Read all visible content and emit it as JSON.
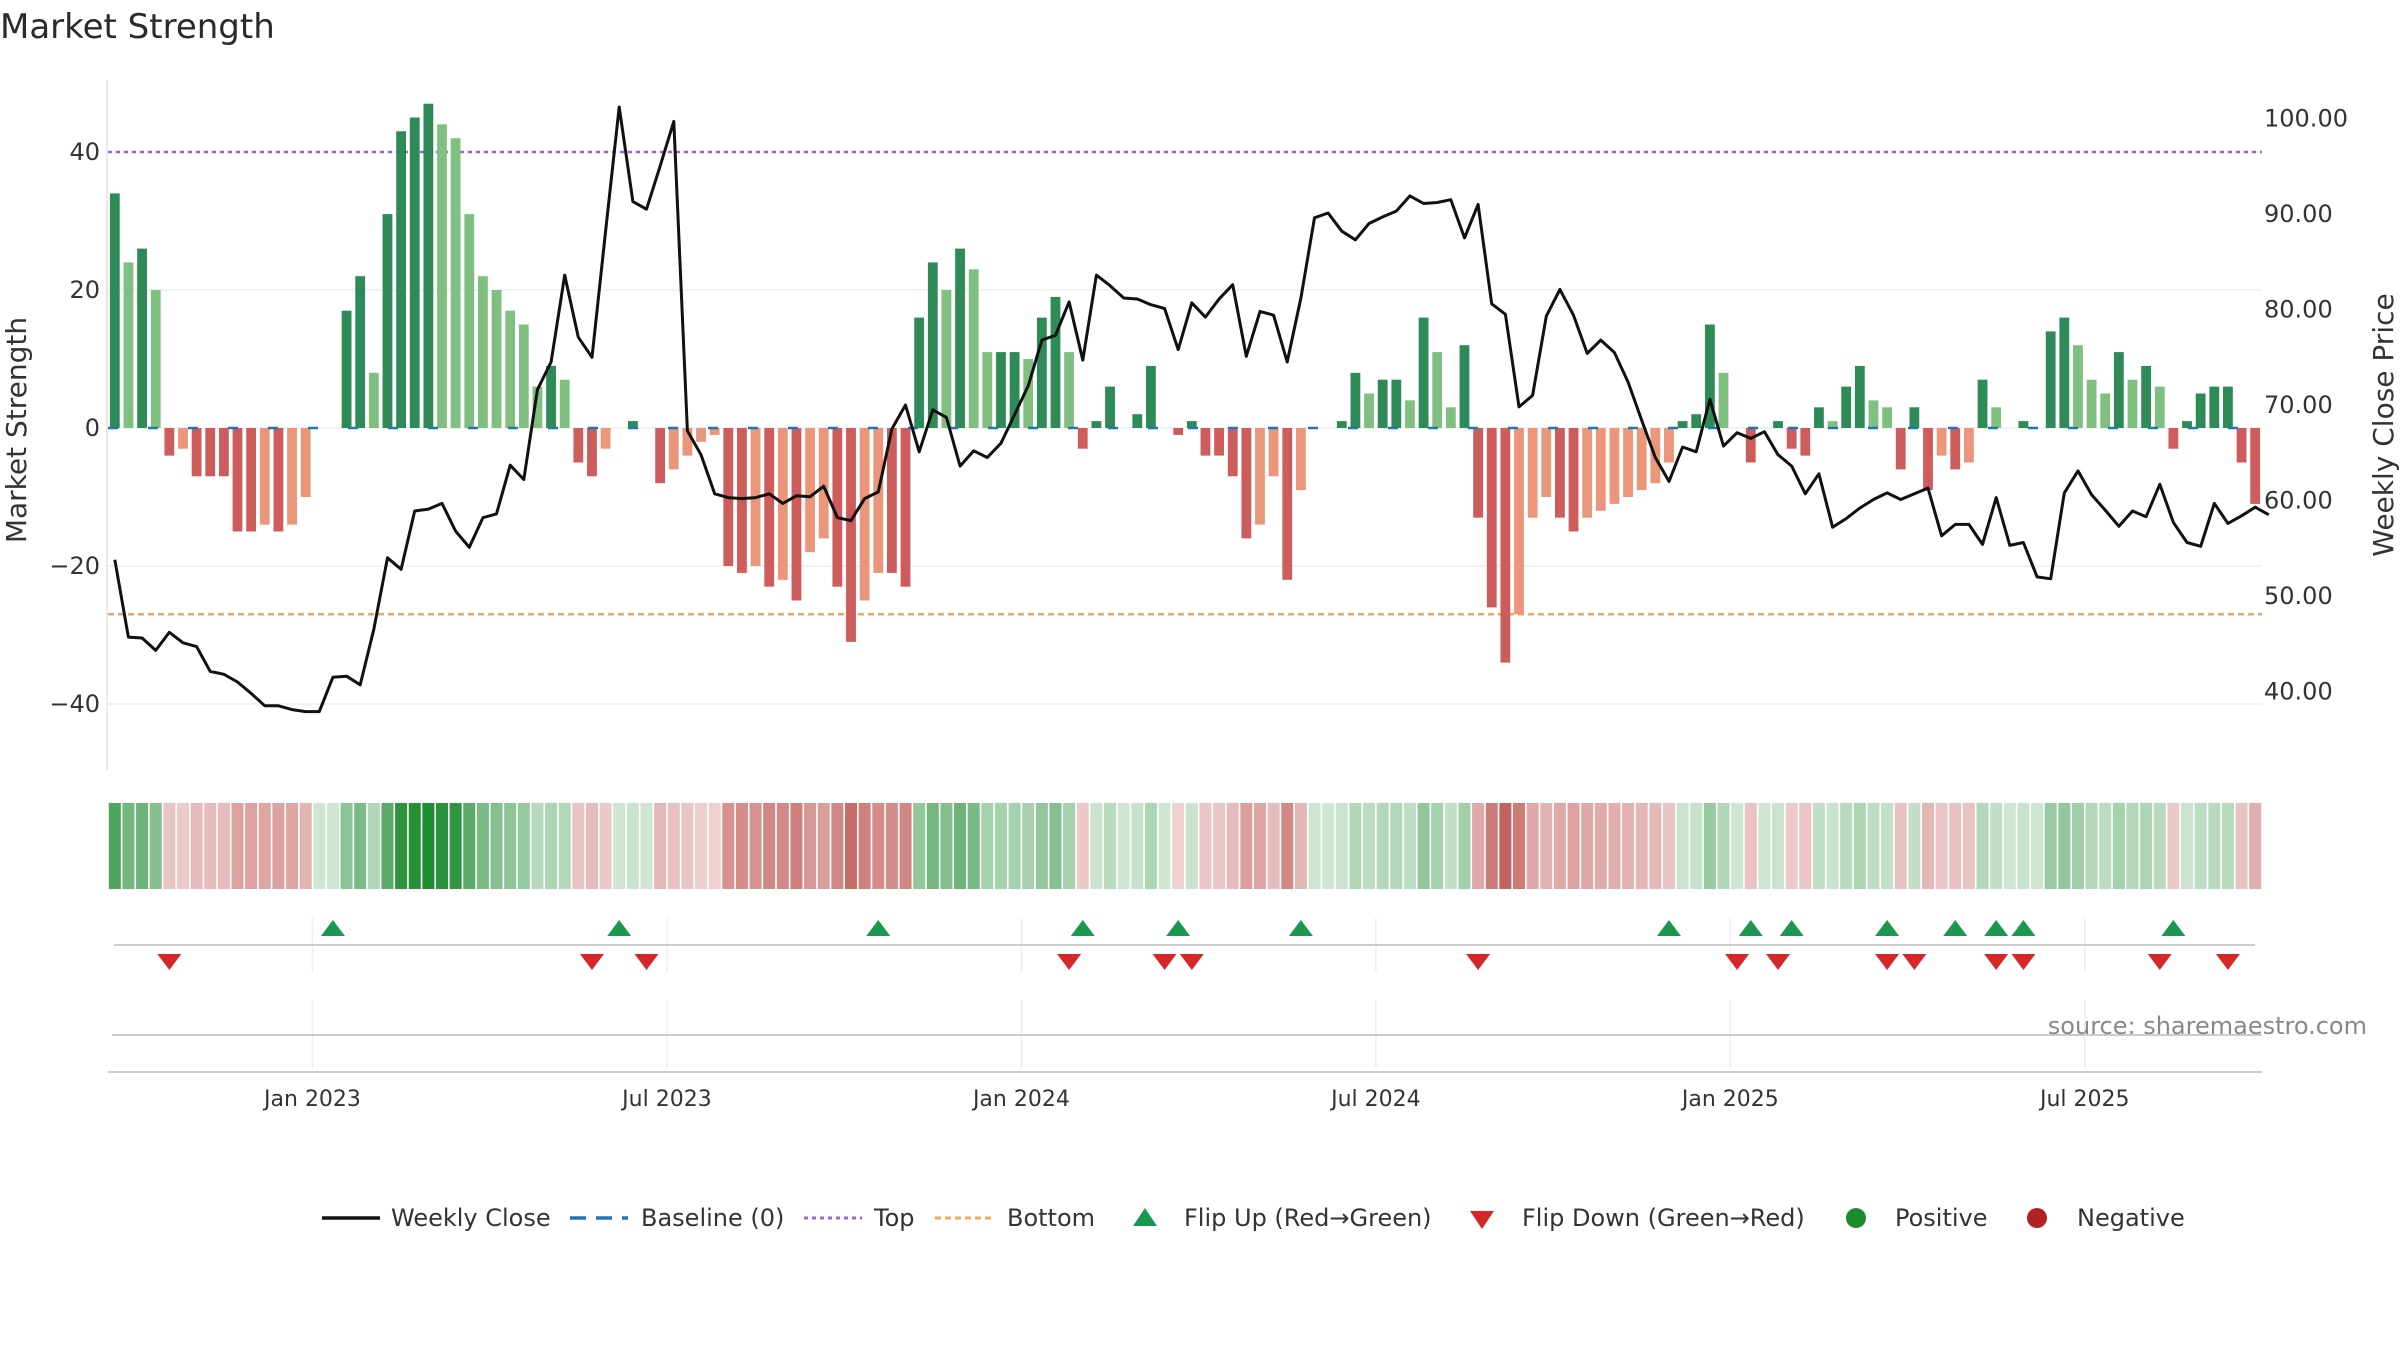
{
  "title": "Market Strength",
  "source": "source: sharemaestro.com",
  "colors": {
    "pos_strong": "#2e8b57",
    "pos_weak": "#7fbf7f",
    "neg_strong": "#cd5c5c",
    "neg_weak": "#e9967a",
    "line": "#111111",
    "top": "#9966cc",
    "bottom": "#f4a460",
    "baseline": "#1f77b4",
    "flip_up": "#1a9850",
    "flip_down": "#d62728",
    "positive": "#1a8a2a",
    "negative": "#b22222"
  },
  "chart_data": {
    "type": "bar",
    "title": "Market Strength",
    "ylabel_left": "Market Strength",
    "ylabel_right": "Weekly Close Price",
    "ylim_left": [
      -50,
      50
    ],
    "ylim_right": [
      30,
      104
    ],
    "yticks_left": [
      "40",
      "20",
      "0",
      "−20",
      "−40"
    ],
    "yticks_right": [
      "100.00",
      "90.00",
      "80.00",
      "70.00",
      "60.00",
      "50.00",
      "40.00"
    ],
    "x_ticks": [
      "Jan 2023",
      "Jul 2023",
      "Jan 2024",
      "Jul 2024",
      "Jan 2025",
      "Jul 2025"
    ],
    "top_level": 40,
    "bottom_level": -27,
    "strength": [
      34,
      24,
      26,
      20,
      -4,
      -3,
      -7,
      -7,
      -7,
      -15,
      -15,
      -14,
      -15,
      -14,
      -10,
      0,
      0,
      17,
      22,
      8,
      31,
      43,
      45,
      47,
      44,
      42,
      31,
      22,
      20,
      17,
      15,
      6,
      9,
      7,
      -5,
      -7,
      -3,
      0,
      1,
      0,
      -8,
      -6,
      -4,
      -2,
      -1,
      -20,
      -21,
      -20,
      -23,
      -22,
      -25,
      -18,
      -16,
      -23,
      -31,
      -25,
      -21,
      -21,
      -23,
      16,
      24,
      20,
      26,
      23,
      11,
      11,
      11,
      10,
      16,
      19,
      11,
      -3,
      1,
      6,
      0,
      2,
      9,
      0,
      -1,
      1,
      -4,
      -4,
      -7,
      -16,
      -14,
      -7,
      -22,
      -9,
      0,
      0,
      1,
      8,
      5,
      7,
      7,
      4,
      16,
      11,
      3,
      12,
      -13,
      -26,
      -34,
      -27,
      -13,
      -10,
      -13,
      -15,
      -13,
      -12,
      -11,
      -10,
      -9,
      -8,
      -5,
      1,
      2,
      15,
      8,
      0,
      -5,
      0,
      1,
      -3,
      -4,
      3,
      1,
      6,
      9,
      4,
      3,
      -6,
      3,
      -9,
      -4,
      -6,
      -5,
      7,
      3,
      0,
      1,
      0,
      14,
      16,
      12,
      7,
      5,
      11,
      7,
      9,
      6,
      -3,
      1,
      5,
      6,
      6,
      -5,
      -11
    ],
    "weekly_close": [
      53.8,
      45.7,
      45.6,
      44.3,
      46.2,
      45.1,
      44.7,
      42.1,
      41.8,
      41,
      39.8,
      38.5,
      38.5,
      38.1,
      37.9,
      37.9,
      41.5,
      41.6,
      40.7,
      46.5,
      54,
      52.8,
      58.9,
      59.1,
      59.7,
      56.8,
      55.1,
      58.2,
      58.6,
      63.7,
      62.2,
      71.6,
      74.5,
      83.6,
      77.1,
      75,
      88.2,
      101.2,
      91.3,
      90.5,
      95,
      99.7,
      67.3,
      64.8,
      60.7,
      60.3,
      60.2,
      60.3,
      60.7,
      59.7,
      60.5,
      60.4,
      61.5,
      58.2,
      57.9,
      60.2,
      60.9,
      67.5,
      70,
      65.1,
      69.5,
      68.7,
      63.6,
      65.2,
      64.5,
      66,
      69,
      72,
      76.8,
      77.3,
      80.8,
      74.7,
      83.6,
      82.5,
      81.2,
      81.1,
      80.5,
      80.1,
      75.8,
      80.7,
      79.2,
      81.1,
      82.6,
      75.1,
      79.8,
      79.4,
      74.5,
      81.2,
      89.6,
      90.1,
      88.2,
      87.3,
      89,
      89.7,
      90.3,
      91.9,
      91.1,
      91.2,
      91.5,
      87.5,
      91,
      80.6,
      79.5,
      69.8,
      71,
      79.3,
      82.1,
      79.4,
      75.4,
      76.8,
      75.5,
      72.4,
      68.4,
      64.5,
      62,
      65.6,
      65.1,
      70.6,
      65.7,
      67.1,
      66.5,
      67.2,
      64.8,
      63.6,
      60.7,
      62.8,
      57.2,
      58.1,
      59.2,
      60.1,
      60.8,
      60.1,
      60.7,
      61.3,
      56.3,
      57.5,
      57.5,
      55.4,
      60.3,
      55.3,
      55.6,
      52,
      51.8,
      60.8,
      63.1,
      60.6,
      59,
      57.3,
      58.9,
      58.3,
      61.7,
      57.7,
      55.6,
      55.2,
      59.7,
      57.6,
      58.4,
      59.3,
      58.5
    ],
    "flip_up_indices": [
      16,
      37,
      56,
      71,
      78,
      87,
      114,
      120,
      123,
      130,
      135,
      138,
      140,
      151
    ],
    "flip_down_indices": [
      4,
      35,
      39,
      70,
      77,
      79,
      100,
      119,
      122,
      130,
      132,
      138,
      140,
      150,
      155
    ],
    "legend": [
      "Weekly Close",
      "Baseline (0)",
      "Top",
      "Bottom",
      "Flip Up (Red→Green)",
      "Flip Down (Green→Red)",
      "Positive",
      "Negative"
    ]
  }
}
